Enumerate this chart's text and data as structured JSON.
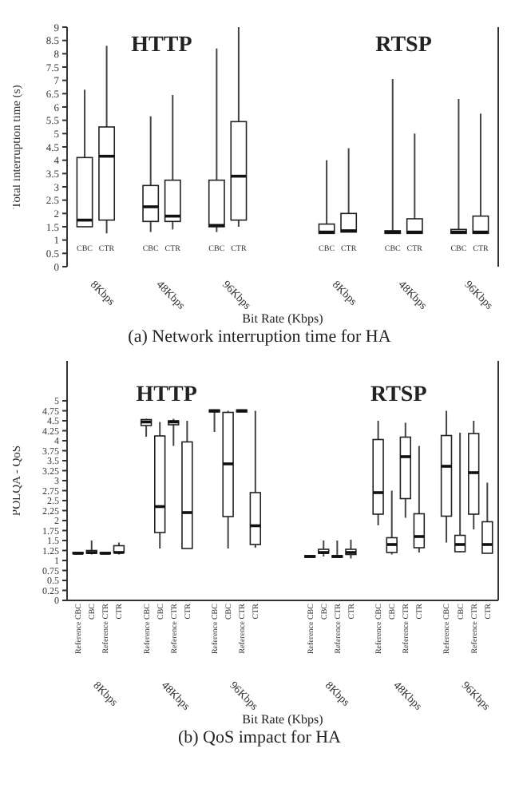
{
  "chart_data": [
    {
      "type": "box",
      "title": "(a) Network interruption time for HA",
      "xlabel": "Bit Rate (Kbps)",
      "ylabel": "Total interruption time (s)",
      "categories": [
        "CBC",
        "CTR",
        null,
        "CBC",
        "CTR",
        null,
        "CBC",
        "CTR",
        null,
        null,
        null,
        "CBC",
        "CTR",
        null,
        "CBC",
        "CTR",
        null,
        "CBC",
        "CTR"
      ],
      "boxes": [
        {
          "low": 1.5,
          "q1": 1.5,
          "median": 1.75,
          "q3": 4.1,
          "high": 6.65
        },
        {
          "low": 1.25,
          "q1": 1.75,
          "median": 4.15,
          "q3": 5.25,
          "high": 8.3
        },
        null,
        {
          "low": 1.3,
          "q1": 1.7,
          "median": 2.25,
          "q3": 3.05,
          "high": 5.65
        },
        {
          "low": 1.4,
          "q1": 1.7,
          "median": 1.9,
          "q3": 3.25,
          "high": 6.45
        },
        null,
        {
          "low": 1.3,
          "q1": 1.5,
          "median": 1.55,
          "q3": 3.25,
          "high": 8.2
        },
        {
          "low": 1.5,
          "q1": 1.75,
          "median": 3.4,
          "q3": 5.45,
          "high": 9
        },
        null,
        null,
        null,
        {
          "low": 1.25,
          "q1": 1.25,
          "median": 1.3,
          "q3": 1.6,
          "high": 4
        },
        {
          "low": 1.3,
          "q1": 1.3,
          "median": 1.35,
          "q3": 2,
          "high": 4.45
        },
        null,
        {
          "low": 1.25,
          "q1": 1.25,
          "median": 1.3,
          "q3": 1.35,
          "high": 7.05
        },
        {
          "low": 1.25,
          "q1": 1.25,
          "median": 1.3,
          "q3": 1.8,
          "high": 5
        },
        null,
        {
          "low": 1.25,
          "q1": 1.25,
          "median": 1.3,
          "q3": 1.4,
          "high": 6.3
        },
        {
          "low": 1.25,
          "q1": 1.25,
          "median": 1.3,
          "q3": 1.9,
          "high": 5.75
        }
      ],
      "ylim": [
        0,
        9
      ],
      "yticks": [
        0,
        0.5,
        1,
        1.5,
        2,
        2.5,
        3,
        3.5,
        4,
        4.5,
        5,
        5.5,
        6,
        6.5,
        7,
        7.5,
        8,
        8.5,
        9
      ],
      "annotations": [
        "HTTP",
        "RTSP",
        "8Kbps",
        "48Kbps",
        "96Kbps",
        "8Kbps",
        "48Kbps",
        "96Kbps"
      ]
    },
    {
      "type": "box",
      "title": "(b) QoS impact for HA",
      "xlabel": "Bit Rate (Kbps)",
      "ylabel": "POLQA - QoS",
      "categories": [
        "Reference CBC",
        "CBC",
        "Reference CTR",
        "CTR",
        null,
        "Reference CBC",
        "CBC",
        "Reference CTR",
        "CTR",
        null,
        "Reference CBC",
        "CBC",
        "Reference CTR",
        "CTR",
        null,
        null,
        null,
        "Reference CBC",
        "CBC",
        "Reference CTR",
        "CTR",
        null,
        "Reference CBC",
        "CBC",
        "Reference CTR",
        "CTR",
        null,
        "Reference CBC",
        "CBC",
        "Reference CTR",
        "CTR"
      ],
      "boxes": [
        {
          "low": 1.17,
          "q1": 1.17,
          "median": 1.18,
          "q3": 1.2,
          "high": 1.2
        },
        {
          "low": 1.15,
          "q1": 1.18,
          "median": 1.2,
          "q3": 1.25,
          "high": 1.5
        },
        {
          "low": 1.17,
          "q1": 1.17,
          "median": 1.18,
          "q3": 1.2,
          "high": 1.2
        },
        {
          "low": 1.15,
          "q1": 1.2,
          "median": 1.2,
          "q3": 1.37,
          "high": 1.45
        },
        null,
        {
          "low": 4.1,
          "q1": 4.38,
          "median": 4.47,
          "q3": 4.53,
          "high": 4.55
        },
        {
          "low": 1.3,
          "q1": 1.7,
          "median": 2.35,
          "q3": 4.12,
          "high": 4.47
        },
        {
          "low": 3.87,
          "q1": 4.4,
          "median": 4.47,
          "q3": 4.5,
          "high": 4.55
        },
        {
          "low": 1.3,
          "q1": 1.3,
          "median": 2.2,
          "q3": 3.97,
          "high": 4.5
        },
        null,
        {
          "low": 4.22,
          "q1": 4.72,
          "median": 4.75,
          "q3": 4.77,
          "high": 4.77
        },
        {
          "low": 1.3,
          "q1": 2.1,
          "median": 3.42,
          "q3": 4.71,
          "high": 4.75
        },
        {
          "low": 4.72,
          "q1": 4.72,
          "median": 4.75,
          "q3": 4.77,
          "high": 4.77
        },
        {
          "low": 1.32,
          "q1": 1.4,
          "median": 1.87,
          "q3": 2.7,
          "high": 4.75
        },
        null,
        null,
        null,
        {
          "low": 1.08,
          "q1": 1.08,
          "median": 1.1,
          "q3": 1.12,
          "high": 1.12
        },
        {
          "low": 1.1,
          "q1": 1.18,
          "median": 1.2,
          "q3": 1.28,
          "high": 1.5
        },
        {
          "low": 1.08,
          "q1": 1.08,
          "median": 1.1,
          "q3": 1.12,
          "high": 1.5
        },
        {
          "low": 1.05,
          "q1": 1.15,
          "median": 1.2,
          "q3": 1.28,
          "high": 1.52
        },
        null,
        {
          "low": 1.88,
          "q1": 2.16,
          "median": 2.7,
          "q3": 4.03,
          "high": 4.5
        },
        {
          "low": 1.15,
          "q1": 1.2,
          "median": 1.4,
          "q3": 1.57,
          "high": 2.75
        },
        {
          "low": 2.07,
          "q1": 2.55,
          "median": 3.6,
          "q3": 4.09,
          "high": 4.45
        },
        {
          "low": 1.2,
          "q1": 1.32,
          "median": 1.6,
          "q3": 2.17,
          "high": 3.87
        },
        null,
        {
          "low": 1.45,
          "q1": 2.11,
          "median": 3.36,
          "q3": 4.13,
          "high": 4.75
        },
        {
          "low": 1.2,
          "q1": 1.22,
          "median": 1.4,
          "q3": 1.63,
          "high": 4.2
        },
        {
          "low": 1.78,
          "q1": 2.16,
          "median": 3.2,
          "q3": 4.18,
          "high": 4.5
        },
        {
          "low": 1.18,
          "q1": 1.18,
          "median": 1.4,
          "q3": 1.97,
          "high": 2.95
        }
      ],
      "ylim": [
        0,
        6
      ],
      "yticks": [
        0,
        0.25,
        0.5,
        0.75,
        1,
        1.25,
        1.5,
        1.75,
        2,
        2.25,
        2.5,
        2.75,
        3,
        3.25,
        3.5,
        3.75,
        4,
        4.25,
        4.5,
        4.75,
        5
      ],
      "annotations": [
        "HTTP",
        "RTSP",
        "8Kbps",
        "48Kbps",
        "96Kbps",
        "8Kbps",
        "48Kbps",
        "96Kbps"
      ]
    }
  ]
}
